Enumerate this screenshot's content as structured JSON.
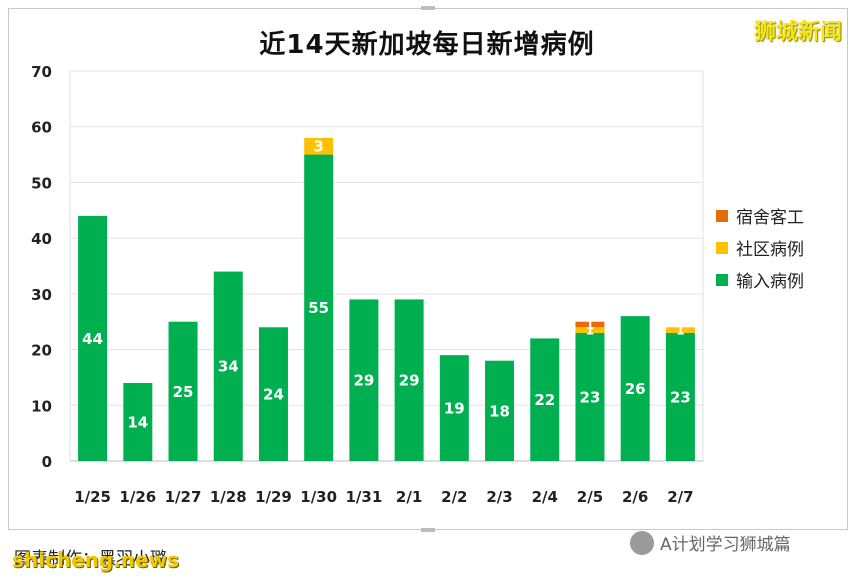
{
  "chart_data": {
    "type": "bar",
    "stacked": true,
    "title": "近14天新加坡每日新增病例",
    "categories": [
      "1/25",
      "1/26",
      "1/27",
      "1/28",
      "1/29",
      "1/30",
      "1/31",
      "2/1",
      "2/2",
      "2/3",
      "2/4",
      "2/5",
      "2/6",
      "2/7"
    ],
    "series": [
      {
        "name": "输入病例",
        "color": "#00b050",
        "values": [
          44,
          14,
          25,
          34,
          24,
          55,
          29,
          29,
          19,
          18,
          22,
          23,
          26,
          23
        ]
      },
      {
        "name": "社区病例",
        "color": "#ffc000",
        "values": [
          0,
          0,
          0,
          0,
          0,
          3,
          0,
          0,
          0,
          0,
          0,
          1,
          0,
          1
        ]
      },
      {
        "name": "宿舍客工",
        "color": "#e46c0a",
        "values": [
          0,
          0,
          0,
          0,
          0,
          0,
          0,
          0,
          0,
          0,
          0,
          1,
          0,
          0
        ]
      }
    ],
    "ylim": [
      0,
      70
    ],
    "yticks": [
      0,
      10,
      20,
      30,
      40,
      50,
      60,
      70
    ],
    "grid": true,
    "legend_position": "right"
  },
  "legend_items": [
    {
      "label": "宿舍客工",
      "color": "#e46c0a"
    },
    {
      "label": "社区病例",
      "color": "#ffc000"
    },
    {
      "label": "输入病例",
      "color": "#00b050"
    }
  ],
  "watermark_top": "狮城新闻",
  "caption": "图表制作：黑羽小璐",
  "caption_overlay": "shicheng.news",
  "account_name": "A计划学习狮城篇"
}
